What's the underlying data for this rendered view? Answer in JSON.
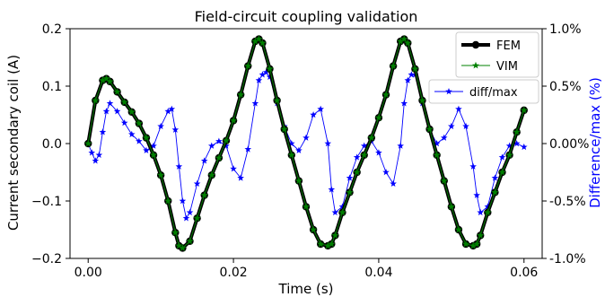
{
  "chart_data": {
    "type": "line",
    "title": "Field-circuit coupling validation",
    "xlabel": "Time (s)",
    "ylabel": "Current secondary coil (A)",
    "y2label": "Difference/max (%)",
    "xlim": [
      -0.0025,
      0.0625
    ],
    "ylim": [
      -0.2,
      0.2
    ],
    "y2lim": [
      -1.0,
      1.0
    ],
    "x_ticks": [
      0.0,
      0.02,
      0.04,
      0.06
    ],
    "x_tick_labels": [
      "0.00",
      "0.02",
      "0.04",
      "0.06"
    ],
    "y_ticks": [
      -0.2,
      -0.1,
      0.0,
      0.1,
      0.2
    ],
    "y_tick_labels": [
      "−0.2",
      "−0.1",
      "0.0",
      "0.1",
      "0.2"
    ],
    "y2_ticks": [
      -1.0,
      -0.5,
      0.0,
      0.5,
      1.0
    ],
    "y2_tick_labels": [
      "-1.0%",
      "-0.5%",
      "0.00%",
      "0.5%",
      "1.0%"
    ],
    "grid": false,
    "legend_placement": "top-right",
    "series": [
      {
        "name": "FEM",
        "axis": "left",
        "color": "#000000",
        "style": "thick line with filled circles",
        "x": [
          0.0,
          0.001,
          0.002,
          0.0025,
          0.003,
          0.004,
          0.005,
          0.006,
          0.007,
          0.008,
          0.009,
          0.01,
          0.011,
          0.012,
          0.0125,
          0.013,
          0.014,
          0.015,
          0.016,
          0.017,
          0.018,
          0.019,
          0.02,
          0.021,
          0.022,
          0.023,
          0.0235,
          0.024,
          0.025,
          0.026,
          0.027,
          0.028,
          0.029,
          0.03,
          0.031,
          0.032,
          0.033,
          0.0335,
          0.034,
          0.035,
          0.036,
          0.037,
          0.038,
          0.039,
          0.04,
          0.041,
          0.042,
          0.043,
          0.0435,
          0.044,
          0.045,
          0.046,
          0.047,
          0.048,
          0.049,
          0.05,
          0.051,
          0.052,
          0.053,
          0.0535,
          0.054,
          0.055,
          0.056,
          0.057,
          0.058,
          0.059,
          0.06
        ],
        "values": [
          0.0,
          0.075,
          0.11,
          0.113,
          0.108,
          0.09,
          0.072,
          0.055,
          0.035,
          0.01,
          -0.02,
          -0.055,
          -0.1,
          -0.155,
          -0.178,
          -0.182,
          -0.17,
          -0.13,
          -0.09,
          -0.055,
          -0.025,
          0.005,
          0.04,
          0.085,
          0.135,
          0.178,
          0.182,
          0.175,
          0.13,
          0.075,
          0.025,
          -0.02,
          -0.065,
          -0.11,
          -0.15,
          -0.175,
          -0.178,
          -0.175,
          -0.16,
          -0.12,
          -0.085,
          -0.05,
          -0.02,
          0.01,
          0.045,
          0.085,
          0.135,
          0.178,
          0.182,
          0.175,
          0.13,
          0.075,
          0.025,
          -0.02,
          -0.065,
          -0.11,
          -0.15,
          -0.175,
          -0.178,
          -0.175,
          -0.16,
          -0.12,
          -0.085,
          -0.05,
          -0.02,
          0.02,
          0.058
        ]
      },
      {
        "name": "VIM",
        "axis": "left",
        "color": "#008000",
        "style": "thin line with star markers",
        "x": [
          0.0,
          0.001,
          0.002,
          0.0025,
          0.003,
          0.004,
          0.005,
          0.006,
          0.007,
          0.008,
          0.009,
          0.01,
          0.011,
          0.012,
          0.0125,
          0.013,
          0.014,
          0.015,
          0.016,
          0.017,
          0.018,
          0.019,
          0.02,
          0.021,
          0.022,
          0.023,
          0.0235,
          0.024,
          0.025,
          0.026,
          0.027,
          0.028,
          0.029,
          0.03,
          0.031,
          0.032,
          0.033,
          0.0335,
          0.034,
          0.035,
          0.036,
          0.037,
          0.038,
          0.039,
          0.04,
          0.041,
          0.042,
          0.043,
          0.0435,
          0.044,
          0.045,
          0.046,
          0.047,
          0.048,
          0.049,
          0.05,
          0.051,
          0.052,
          0.053,
          0.0535,
          0.054,
          0.055,
          0.056,
          0.057,
          0.058,
          0.059,
          0.06
        ],
        "values": [
          0.0,
          0.075,
          0.11,
          0.113,
          0.108,
          0.09,
          0.072,
          0.055,
          0.035,
          0.01,
          -0.02,
          -0.055,
          -0.1,
          -0.155,
          -0.178,
          -0.182,
          -0.17,
          -0.13,
          -0.09,
          -0.055,
          -0.025,
          0.005,
          0.04,
          0.085,
          0.135,
          0.178,
          0.182,
          0.175,
          0.13,
          0.075,
          0.025,
          -0.02,
          -0.065,
          -0.11,
          -0.15,
          -0.175,
          -0.178,
          -0.175,
          -0.16,
          -0.12,
          -0.085,
          -0.05,
          -0.02,
          0.01,
          0.045,
          0.085,
          0.135,
          0.178,
          0.182,
          0.175,
          0.13,
          0.075,
          0.025,
          -0.02,
          -0.065,
          -0.11,
          -0.15,
          -0.175,
          -0.178,
          -0.175,
          -0.16,
          -0.12,
          -0.085,
          -0.05,
          -0.02,
          0.02,
          0.058
        ]
      },
      {
        "name": "diff/max",
        "axis": "right",
        "color": "#0000ff",
        "style": "thin line with star markers",
        "x": [
          0.0,
          0.0005,
          0.001,
          0.0015,
          0.002,
          0.0025,
          0.003,
          0.004,
          0.005,
          0.006,
          0.007,
          0.008,
          0.009,
          0.01,
          0.011,
          0.0115,
          0.012,
          0.0125,
          0.013,
          0.0135,
          0.014,
          0.015,
          0.016,
          0.017,
          0.018,
          0.019,
          0.02,
          0.021,
          0.022,
          0.023,
          0.0235,
          0.024,
          0.0245,
          0.025,
          0.026,
          0.027,
          0.028,
          0.029,
          0.03,
          0.031,
          0.032,
          0.033,
          0.0335,
          0.034,
          0.035,
          0.036,
          0.037,
          0.038,
          0.039,
          0.04,
          0.041,
          0.042,
          0.043,
          0.0435,
          0.044,
          0.0445,
          0.045,
          0.046,
          0.047,
          0.048,
          0.049,
          0.05,
          0.051,
          0.052,
          0.053,
          0.0535,
          0.054,
          0.055,
          0.056,
          0.057,
          0.058,
          0.059,
          0.06
        ],
        "values": [
          0.0,
          -0.08,
          -0.15,
          -0.1,
          0.1,
          0.28,
          0.35,
          0.28,
          0.18,
          0.08,
          0.02,
          -0.06,
          -0.02,
          0.15,
          0.28,
          0.3,
          0.12,
          -0.2,
          -0.5,
          -0.65,
          -0.6,
          -0.35,
          -0.15,
          -0.02,
          0.02,
          -0.02,
          -0.22,
          -0.3,
          -0.05,
          0.35,
          0.55,
          0.6,
          0.62,
          0.58,
          0.35,
          0.15,
          0.0,
          -0.06,
          0.05,
          0.25,
          0.3,
          0.0,
          -0.4,
          -0.6,
          -0.55,
          -0.3,
          -0.12,
          -0.02,
          0.02,
          -0.08,
          -0.25,
          -0.35,
          -0.02,
          0.35,
          0.55,
          0.6,
          0.6,
          0.35,
          0.12,
          0.0,
          0.05,
          0.15,
          0.3,
          0.15,
          -0.2,
          -0.45,
          -0.6,
          -0.55,
          -0.3,
          -0.12,
          -0.02,
          0.0,
          -0.03
        ]
      }
    ]
  }
}
